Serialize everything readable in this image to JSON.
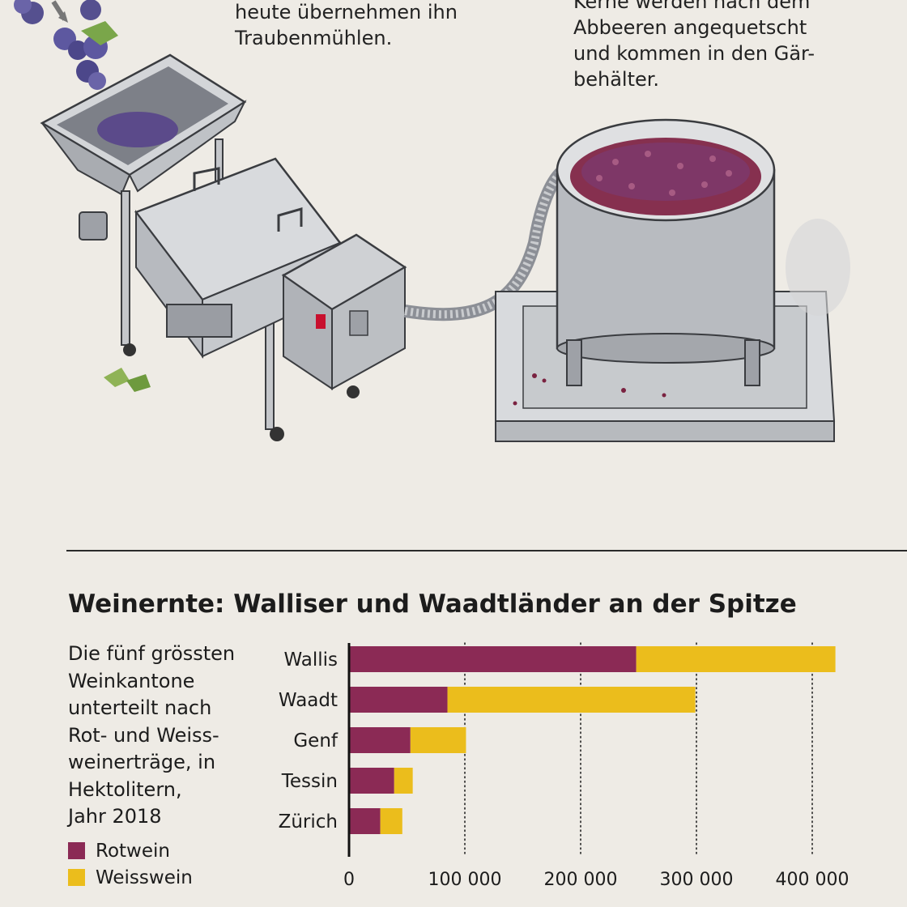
{
  "captions": {
    "left": [
      "heute übernehmen ihn",
      "Traubenmühlen."
    ],
    "right": [
      "Kerne werden nach dem",
      "Abbeeren angequetscht",
      "und kommen in den Gär-",
      "behälter."
    ]
  },
  "chart_data": {
    "type": "bar",
    "orientation": "horizontal",
    "stacked": true,
    "title": "Weinernte: Walliser und Waadtländer an der Spitze",
    "subtitle": [
      "Die fünf grössten",
      "Weinkantone",
      "unterteilt nach",
      "Rot- und Weiss-",
      "weinerträge, in",
      "Hektolitern,",
      "Jahr 2018"
    ],
    "categories": [
      "Wallis",
      "Waadt",
      "Genf",
      "Tessin",
      "Zürich"
    ],
    "series": [
      {
        "name": "Rotwein",
        "color": "#8b2a55",
        "values": [
          248000,
          85000,
          53000,
          39000,
          27000
        ]
      },
      {
        "name": "Weisswein",
        "color": "#ebbd1c",
        "values": [
          172000,
          214000,
          48000,
          16000,
          19000
        ]
      }
    ],
    "xlim": [
      0,
      420000
    ],
    "xticks": [
      0,
      100000,
      200000,
      300000,
      400000
    ],
    "xtick_labels": [
      "0",
      "100 000",
      "200 000",
      "300 000",
      "400 000"
    ],
    "grid": "vertical dotted",
    "legend": "bottom-left"
  },
  "colors": {
    "rotwein": "#8b2a55",
    "weisswein": "#ebbd1c",
    "background": "#eeebe5"
  }
}
